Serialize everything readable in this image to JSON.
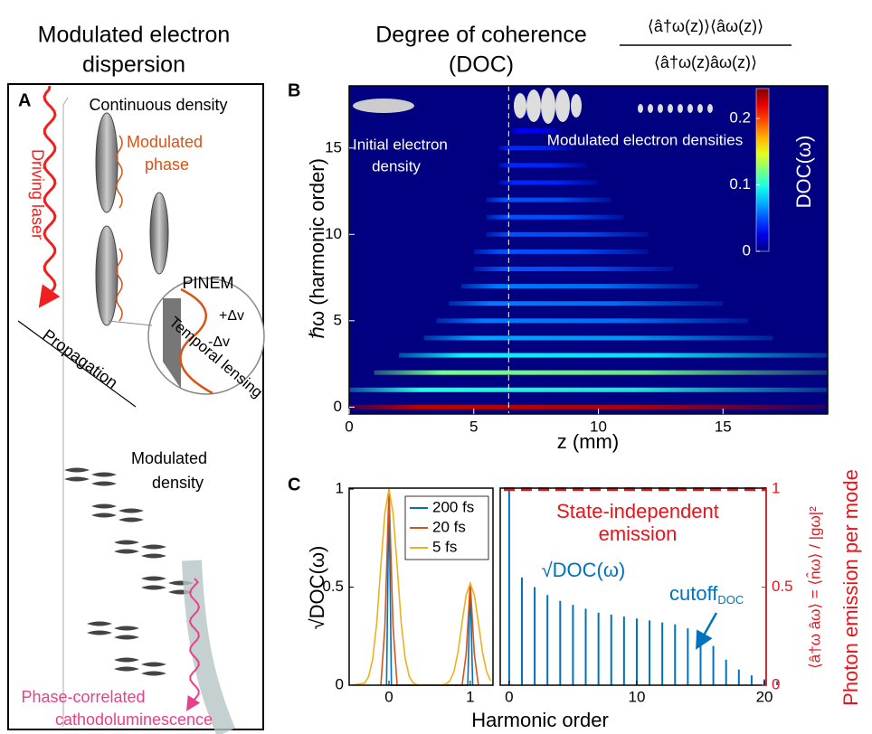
{
  "title_a": [
    "Modulated electron",
    "dispersion"
  ],
  "title_b": [
    "Degree of coherence",
    "(DOC)"
  ],
  "formula": {
    "numerator": "⟨â†ω(z)⟩⟨âω(z)⟩",
    "denominator": "⟨â†ω(z)âω(z)⟩"
  },
  "panel_a": {
    "label": "A",
    "continuous": "Continuous density",
    "phase": [
      "Modulated",
      "phase"
    ],
    "laser": "Driving laser",
    "pinem": "PINEM",
    "plus": "+Δv",
    "minus": "-Δv",
    "lensing": "Temporal lensing",
    "propagation": "Propagation",
    "density": [
      "Modulated",
      "density"
    ],
    "cl": [
      "Phase-correlated",
      "cathodoluminescence"
    ]
  },
  "chart_data": [
    {
      "type": "heatmap",
      "label": "B",
      "xlabel": "z (mm)",
      "ylabel": "ℏω (harmonic order)",
      "xlim": [
        0,
        19.2
      ],
      "ylim": [
        -0.4,
        18.6
      ],
      "xticks": [
        0,
        5,
        10,
        15
      ],
      "yticks": [
        0,
        5,
        10,
        15
      ],
      "annotations": {
        "initial": [
          "Initial electron",
          "density"
        ],
        "modulated": "Modulated electron densities"
      },
      "marker_z": 6.4,
      "colorbar": {
        "label": "DOC(ω)",
        "lim": [
          0,
          0.245
        ],
        "ticks": [
          0,
          0.1,
          0.2
        ]
      },
      "rows": [
        0,
        1,
        2,
        3,
        4,
        5,
        6,
        7,
        8,
        9,
        10,
        11,
        12,
        13,
        14,
        15,
        16,
        17
      ],
      "z_start": [
        0,
        0,
        1,
        2,
        3,
        3.5,
        4,
        4.5,
        5,
        5,
        5.5,
        5.5,
        5.5,
        6,
        6,
        6,
        6.5,
        7
      ],
      "z_end": [
        19.2,
        19.2,
        19.2,
        19.2,
        17,
        16,
        15,
        14,
        13,
        12,
        12,
        11,
        10.5,
        10,
        9.5,
        9,
        8.5,
        8
      ],
      "values": [
        0.23,
        0.1,
        0.12,
        0.09,
        0.07,
        0.06,
        0.06,
        0.06,
        0.05,
        0.05,
        0.05,
        0.05,
        0.05,
        0.04,
        0.04,
        0.04,
        0.03,
        0.03
      ]
    },
    {
      "type": "line",
      "label": "C",
      "ylabel": "√DOC(ω)",
      "xlabel": "Harmonic order",
      "xlim": [
        -0.49,
        1.28
      ],
      "ylim": [
        0,
        1.005
      ],
      "xticks": [
        0,
        1
      ],
      "yticks": [
        0,
        0.5,
        1
      ],
      "legend": "upper right",
      "series": [
        {
          "name": "200 fs",
          "color": "#0072bd",
          "x": [
            -0.03,
            0,
            0.03,
            0.97,
            1,
            1.03
          ],
          "values": [
            0,
            1,
            0,
            0,
            0.52,
            0
          ]
        },
        {
          "name": "20 fs",
          "color": "#d95319",
          "x": [
            -0.1,
            -0.05,
            0,
            0.05,
            0.1,
            0.9,
            0.95,
            1,
            1.05,
            1.1
          ],
          "values": [
            0,
            0.3,
            1,
            0.3,
            0,
            0,
            0.16,
            0.52,
            0.16,
            0
          ]
        },
        {
          "name": "5 fs",
          "color": "#edb120",
          "x": [
            -0.45,
            -0.3,
            -0.25,
            -0.2,
            -0.15,
            -0.1,
            -0.05,
            0,
            0.05,
            0.1,
            0.15,
            0.2,
            0.25,
            0.3,
            0.35,
            0.4,
            0.5,
            0.6,
            0.65,
            0.7,
            0.75,
            0.8,
            0.85,
            0.9,
            0.95,
            1,
            1.05,
            1.1,
            1.15,
            1.2,
            1.25
          ],
          "values": [
            0,
            0.011,
            0.044,
            0.135,
            0.32,
            0.61,
            0.88,
            1,
            0.88,
            0.61,
            0.32,
            0.135,
            0.044,
            0.011,
            0.002,
            0,
            0,
            0,
            0.002,
            0.006,
            0.023,
            0.07,
            0.17,
            0.32,
            0.46,
            0.52,
            0.46,
            0.32,
            0.17,
            0.07,
            0.023
          ]
        }
      ]
    },
    {
      "type": "stem",
      "color": "#0072bd",
      "x": [
        0,
        1,
        2,
        3,
        4,
        5,
        6,
        7,
        8,
        9,
        10,
        11,
        12,
        13,
        14,
        15,
        16,
        17,
        18,
        19,
        20,
        21
      ],
      "values": [
        1,
        0.55,
        0.5,
        0.46,
        0.43,
        0.41,
        0.39,
        0.37,
        0.36,
        0.35,
        0.34,
        0.33,
        0.32,
        0.31,
        0.29,
        0.26,
        0.2,
        0.13,
        0.08,
        0.05,
        0.03,
        0.02
      ],
      "xlim": [
        -0.7,
        20.14
      ],
      "ylim": [
        0,
        1.005
      ],
      "xticks": [
        0,
        10,
        20
      ],
      "y2lim": [
        0,
        1.005
      ],
      "y2ticks": [
        0,
        0.5,
        1
      ],
      "y2color": "#e8141b",
      "y2label": "Photon emission per mode",
      "y2formula": "⟨â†ω âω⟩ = ⟨n̂ω⟩ / |gω|²",
      "reference": {
        "value": 1,
        "axis": "y2",
        "label": [
          "State-independent",
          "emission"
        ]
      },
      "annotations": {
        "sqrt": "√DOC(ω)",
        "cutoff": "cutoff",
        "cutoff_sub": "DOC"
      }
    }
  ]
}
